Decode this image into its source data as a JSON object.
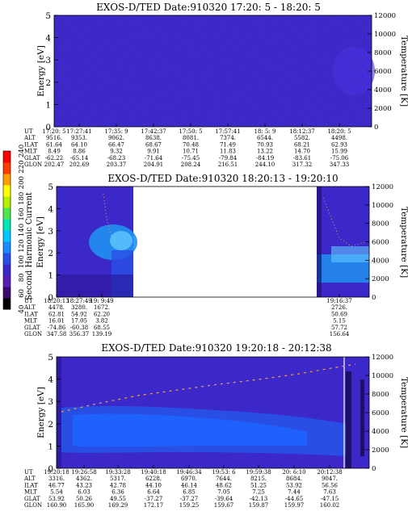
{
  "chart_data": [
    {
      "type": "heatmap",
      "title": "EXOS-D/TED    Date:910320  17:20: 5 - 18:20: 5",
      "ylabel": "Energy [eV]",
      "y2label": "Temperature [K]",
      "ylim": [
        0,
        5
      ],
      "y2lim": [
        0,
        12000
      ],
      "yticks": [
        "0",
        "1",
        "2",
        "3",
        "4",
        "5"
      ],
      "y2ticks": [
        "0",
        "2000",
        "4000",
        "6000",
        "8000",
        "10000",
        "12000"
      ],
      "background": "#3c28c8",
      "colors": {
        "base": "#3c28c8",
        "dark": "#2a1694",
        "bright": "#4632dc"
      },
      "ephemeris": {
        "labels": [
          "UT",
          "ALT",
          "ILAT",
          "MLT",
          "GLAT",
          "GLON"
        ],
        "columns": [
          [
            "17:20: 5",
            "9516.",
            "61.64",
            "8.49",
            "-62.22",
            "202.47"
          ],
          [
            "17:27:41",
            "9353.",
            "64.10",
            "8.86",
            "-65.14",
            "202.69"
          ],
          [
            "17:35: 9",
            "9062.",
            "66.47",
            "9.32",
            "-68.23",
            "203.37"
          ],
          [
            "17:42:37",
            "8638.",
            "68.67",
            "9.91",
            "-71.64",
            "204.91"
          ],
          [
            "17:50: 5",
            "8081.",
            "70.48",
            "10.71",
            "-75.45",
            "208.24"
          ],
          [
            "17:57:41",
            "7374.",
            "71.49",
            "11.83",
            "-79.84",
            "216.51"
          ],
          [
            "18: 5: 9",
            "6544.",
            "70.93",
            "13.22",
            "-84.19",
            "244.10"
          ],
          [
            "18:12:37",
            "5582.",
            "68.21",
            "14.70",
            "-83.61",
            "317.32"
          ],
          [
            "18:20: 5",
            "4498.",
            "62.93",
            "15.99",
            "-75.06",
            "347.33"
          ]
        ]
      }
    },
    {
      "type": "heatmap",
      "title": "EXOS-D/TED    Date:910320  18:20:13 - 19:20:10",
      "ylabel": "Energy [eV]",
      "y2label": "Temperature [K]",
      "ylim": [
        0,
        5
      ],
      "y2lim": [
        0,
        12000
      ],
      "yticks": [
        "0",
        "1",
        "2",
        "3",
        "4",
        "5"
      ],
      "y2ticks": [
        "0",
        "2000",
        "4000",
        "6000",
        "8000",
        "10000",
        "12000"
      ],
      "data_gap": "between first ~16% and last ~15% of the interval (no data, white)",
      "colors": {
        "base": "#3c28c8",
        "cyan": "#2090f0",
        "light": "#60c8ff",
        "dark": "#1e0f6e",
        "trace": "#e0a060"
      },
      "ephemeris": {
        "labels": [
          "UT",
          "ALT",
          "ILAT",
          "MLT",
          "GLAT",
          "GLON"
        ],
        "columns": [
          [
            "18:20:13",
            "4478.",
            "62.81",
            "16.01",
            "-74.86",
            "347.58"
          ],
          [
            "18:27:49",
            "3280.",
            "54.92",
            "17.05",
            "-60.38",
            "356.37"
          ],
          [
            "19: 9:49",
            "1672.",
            "62.20",
            "3.82",
            "68.55",
            "139.19"
          ],
          [
            "19:16:37",
            "2726.",
            "50.69",
            "5.15",
            "57.72",
            "156.64"
          ]
        ]
      }
    },
    {
      "type": "heatmap",
      "title": "EXOS-D/TED    Date:910320  19:20:18 - 20:12:38",
      "ylabel": "Energy [eV]",
      "y2label": "Temperature [K]",
      "ylim": [
        0,
        5
      ],
      "y2lim": [
        0,
        12000
      ],
      "yticks": [
        "0",
        "1",
        "2",
        "3",
        "4",
        "5"
      ],
      "y2ticks": [
        "0",
        "2000",
        "4000",
        "6000",
        "8000",
        "10000",
        "12000"
      ],
      "colors": {
        "base": "#3c28c8",
        "mid": "#2850e6",
        "bright": "#1e64ff",
        "trace": "#f0a040"
      },
      "ephemeris": {
        "labels": [
          "UT",
          "ALT",
          "ILAT",
          "MLT",
          "GLAT",
          "GLON"
        ],
        "columns": [
          [
            "19:20:18",
            "3316.",
            "46.77",
            "5.54",
            "53.92",
            "160.90"
          ],
          [
            "19:26:58",
            "4362.",
            "43.23",
            "6.03",
            "50.26",
            "165.90"
          ],
          [
            "19:33:28",
            "5317.",
            "42.78",
            "6.36",
            "49.55",
            "169.29"
          ],
          [
            "19:40:18",
            "6228.",
            "44.10",
            "6.64",
            "-37.27",
            "172.17"
          ],
          [
            "19:46:34",
            "6970.",
            "46.14",
            "6.85",
            "-37.27",
            "159.25"
          ],
          [
            "19:53: 6",
            "7644.",
            "48.62",
            "7.05",
            "-39.64",
            "159.67"
          ],
          [
            "19:59:38",
            "8215.",
            "51.25",
            "7.25",
            "-42.13",
            "159.87"
          ],
          [
            "20: 6:10",
            "8684.",
            "53.92",
            "7.44",
            "-44.65",
            "159.97"
          ],
          [
            "20:12:38",
            "9047.",
            "56.56",
            "7.63",
            "-47.15",
            "160.02"
          ]
        ]
      }
    }
  ],
  "colorbar": {
    "label": "Second Harmonic Current",
    "ticks": [
      "40",
      "60",
      "80",
      "100",
      "120",
      "140",
      "160",
      "180",
      "200",
      "220",
      "240"
    ],
    "colors": [
      "#000000",
      "#3c0a6e",
      "#5a1eb4",
      "#3c28c8",
      "#2850e6",
      "#1e8cff",
      "#00c8ff",
      "#00e6b4",
      "#50e650",
      "#b4f000",
      "#ffff00",
      "#ffa000",
      "#ff3c00",
      "#ff0000"
    ]
  }
}
